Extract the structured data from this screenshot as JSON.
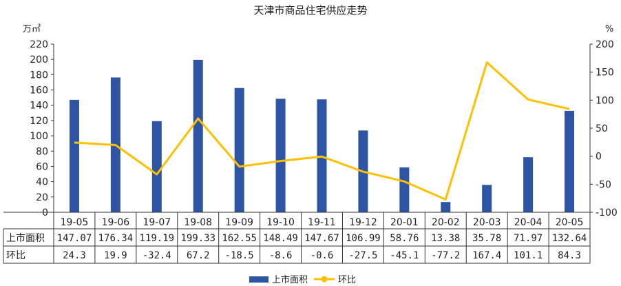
{
  "chart_data": {
    "type": "bar",
    "title": "天津市商品住宅供应走势",
    "categories": [
      "19-05",
      "19-06",
      "19-07",
      "19-08",
      "19-09",
      "19-10",
      "19-11",
      "19-12",
      "20-01",
      "20-02",
      "20-03",
      "20-04",
      "20-05"
    ],
    "series": [
      {
        "name": "上市面积",
        "type": "bar",
        "axis": "left",
        "color": "#2E54A4",
        "values": [
          147.07,
          176.34,
          119.19,
          199.33,
          162.55,
          148.49,
          147.67,
          106.99,
          58.76,
          13.38,
          35.78,
          71.97,
          132.64
        ],
        "labels": [
          "147.07",
          "176.34",
          "119.19",
          "199.33",
          "162.55",
          "148.49",
          "147.67",
          "106.99",
          "58.76",
          "13.38",
          "35.78",
          "71.97",
          "132.64"
        ]
      },
      {
        "name": "环比",
        "type": "line",
        "axis": "right",
        "color": "#FFC000",
        "values": [
          24.3,
          19.9,
          -32.4,
          67.2,
          -18.5,
          -8.6,
          -0.6,
          -27.5,
          -45.1,
          -77.2,
          167.4,
          101.1,
          84.3
        ],
        "labels": [
          "24.3",
          "19.9",
          "-32.4",
          "67.2",
          "-18.5",
          "-8.6",
          "-0.6",
          "-27.5",
          "-45.1",
          "-77.2",
          "167.4",
          "101.1",
          "84.3"
        ]
      }
    ],
    "ylabel": "万㎡",
    "y2label": "%",
    "ylim": [
      0,
      220
    ],
    "y2lim": [
      -100,
      200
    ],
    "yticks": [
      "0",
      "20",
      "40",
      "60",
      "80",
      "100",
      "120",
      "140",
      "160",
      "180",
      "200",
      "220"
    ],
    "y2ticks": [
      "-100",
      "-50",
      "0",
      "50",
      "100",
      "150",
      "200"
    ],
    "grid": false,
    "legend": "bottom",
    "data_table": true
  }
}
